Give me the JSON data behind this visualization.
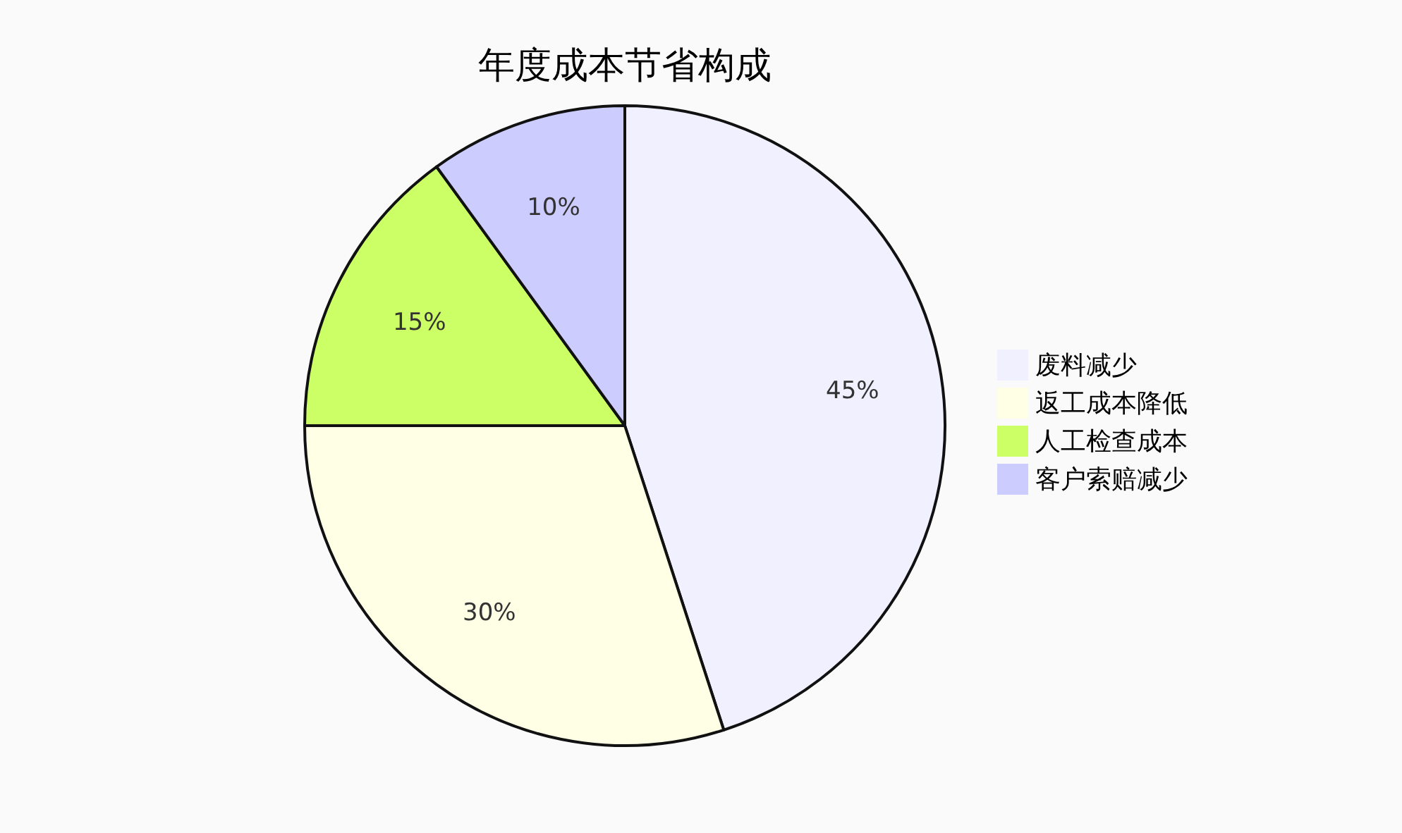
{
  "chart_data": {
    "type": "pie",
    "title": "年度成本节省构成",
    "categories": [
      "废料减少",
      "返工成本降低",
      "人工检查成本",
      "客户索赔减少"
    ],
    "values": [
      45,
      30,
      15,
      10
    ],
    "colors": [
      "#f0f0ff",
      "#ffffe6",
      "#ccff66",
      "#ccccff"
    ],
    "value_labels": [
      "45%",
      "30%",
      "15%",
      "10%"
    ],
    "legend": "right"
  }
}
